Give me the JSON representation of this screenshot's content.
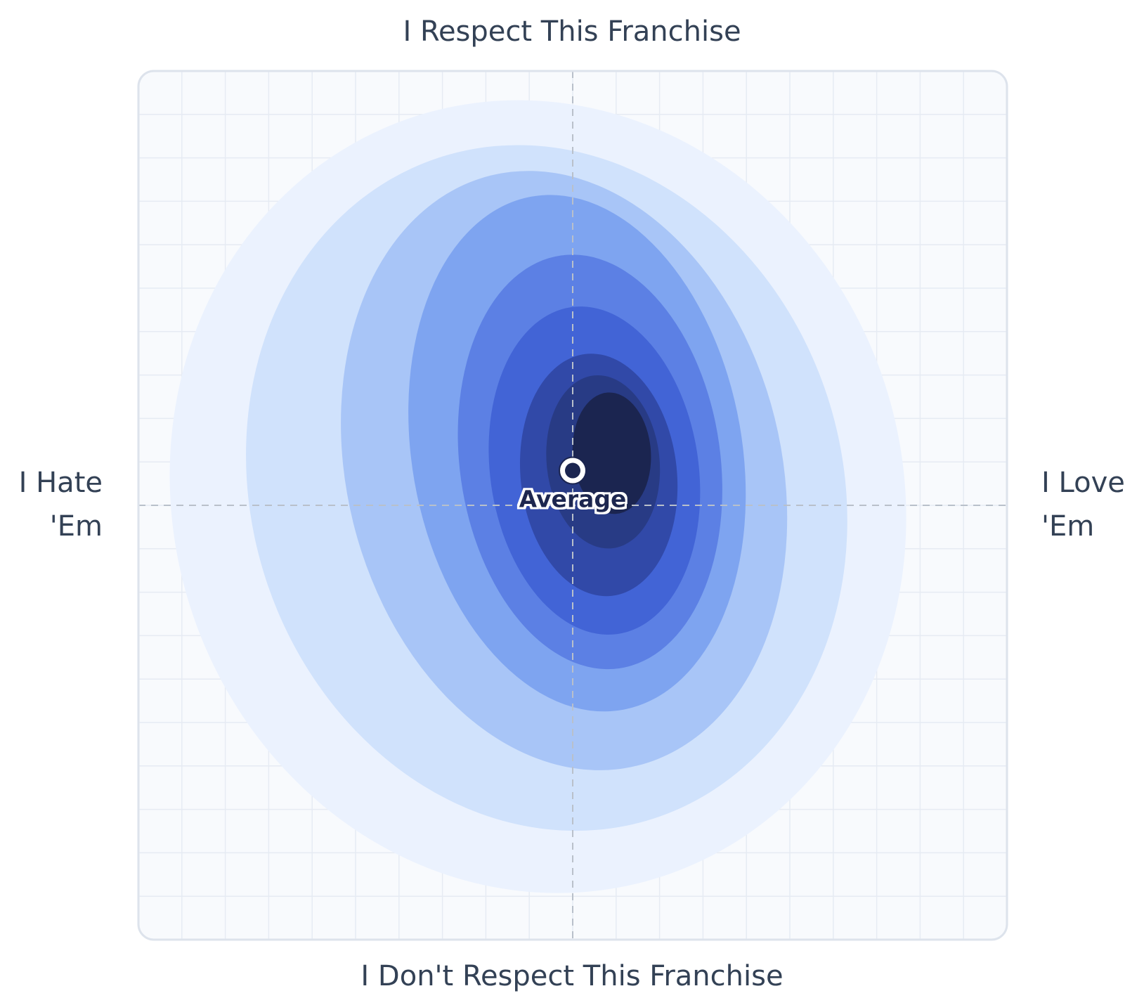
{
  "chart_data": {
    "type": "contour",
    "axes": {
      "top": "I Respect This Franchise",
      "bottom": "I Don't Respect This Franchise",
      "left_line1": "I Hate",
      "left_line2": "'Em",
      "right_line1": "I Love",
      "right_line2": "'Em"
    },
    "xlim": [
      -1,
      1
    ],
    "ylim": [
      -1,
      1
    ],
    "grid": true,
    "grid_divisions": 20,
    "average": {
      "label": "Average",
      "x": 0.0,
      "y": 0.08
    },
    "density_levels": [
      {
        "level": 1,
        "color": "#ebf2fe",
        "cx": -0.08,
        "cy": 0.02,
        "rx": 0.84,
        "ry": 0.92,
        "rotate": -18
      },
      {
        "level": 2,
        "color": "#d0e2fc",
        "cx": -0.06,
        "cy": 0.04,
        "rx": 0.68,
        "ry": 0.8,
        "rotate": -18
      },
      {
        "level": 3,
        "color": "#a8c5f7",
        "cx": -0.02,
        "cy": 0.08,
        "rx": 0.5,
        "ry": 0.7,
        "rotate": -14
      },
      {
        "level": 4,
        "color": "#7ea4f0",
        "cx": 0.01,
        "cy": 0.12,
        "rx": 0.38,
        "ry": 0.6,
        "rotate": -10
      },
      {
        "level": 5,
        "color": "#5c80e4",
        "cx": 0.04,
        "cy": 0.1,
        "rx": 0.3,
        "ry": 0.48,
        "rotate": -8
      },
      {
        "level": 6,
        "color": "#4264d6",
        "cx": 0.05,
        "cy": 0.08,
        "rx": 0.24,
        "ry": 0.38,
        "rotate": -8
      },
      {
        "level": 7,
        "color": "#3149a8",
        "cx": 0.06,
        "cy": 0.07,
        "rx": 0.18,
        "ry": 0.28,
        "rotate": -6
      },
      {
        "level": 8,
        "color": "#283b85",
        "cx": 0.07,
        "cy": 0.1,
        "rx": 0.13,
        "ry": 0.2,
        "rotate": -6
      },
      {
        "level": 9,
        "color": "#1b2550",
        "cx": 0.09,
        "cy": 0.12,
        "rx": 0.09,
        "ry": 0.14,
        "rotate": -4
      }
    ]
  },
  "colors": {
    "plot_bg": "#f8fafd",
    "plot_border": "#dde3ec",
    "grid": "#e6ebf3",
    "crosshair": "#b9c0ca",
    "label_text": "#334155"
  }
}
